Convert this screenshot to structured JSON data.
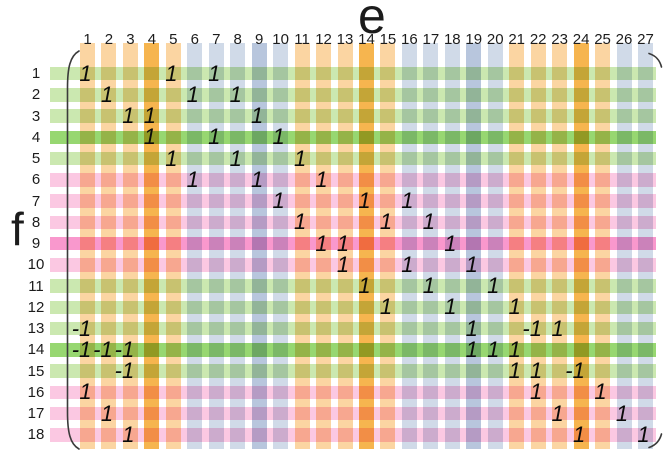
{
  "figure": {
    "top_axis_label": "e",
    "left_axis_label": "f"
  },
  "palette": {
    "column_orange": "#FBD5A2",
    "column_orange_dark": "#F6B54F",
    "column_blue": "#D0DAE8",
    "column_blue_dark": "#B8C6DD",
    "row_green": "#CBE8B0",
    "row_green_dark": "#97D771",
    "row_pink": "#FBC8E2",
    "row_pink_dark": "#F998CD",
    "entry_text": "#0a0a0a",
    "paren_stroke": "#3b3b3b",
    "label_text": "#1c1c1c"
  },
  "columns": [
    {
      "label": "1",
      "color": "#FBD5A2"
    },
    {
      "label": "2",
      "color": "#FBD5A2"
    },
    {
      "label": "3",
      "color": "#FBD5A2"
    },
    {
      "label": "4",
      "color": "#F6B54F"
    },
    {
      "label": "5",
      "color": "#FBD5A2"
    },
    {
      "label": "6",
      "color": "#D0DAE8"
    },
    {
      "label": "7",
      "color": "#D0DAE8"
    },
    {
      "label": "8",
      "color": "#D0DAE8"
    },
    {
      "label": "9",
      "color": "#B8C6DD"
    },
    {
      "label": "10",
      "color": "#D0DAE8"
    },
    {
      "label": "11",
      "color": "#FBD5A2"
    },
    {
      "label": "12",
      "color": "#FBD5A2"
    },
    {
      "label": "13",
      "color": "#FBD5A2"
    },
    {
      "label": "14",
      "color": "#F6B54F"
    },
    {
      "label": "15",
      "color": "#FBD5A2"
    },
    {
      "label": "16",
      "color": "#D0DAE8"
    },
    {
      "label": "17",
      "color": "#D0DAE8"
    },
    {
      "label": "18",
      "color": "#D0DAE8"
    },
    {
      "label": "19",
      "color": "#B8C6DD"
    },
    {
      "label": "20",
      "color": "#D0DAE8"
    },
    {
      "label": "21",
      "color": "#FBD5A2"
    },
    {
      "label": "22",
      "color": "#FBD5A2"
    },
    {
      "label": "23",
      "color": "#FBD5A2"
    },
    {
      "label": "24",
      "color": "#F6B54F"
    },
    {
      "label": "25",
      "color": "#FBD5A2"
    },
    {
      "label": "26",
      "color": "#D0DAE8"
    },
    {
      "label": "27",
      "color": "#D0DAE8"
    }
  ],
  "rows": [
    {
      "label": "1",
      "color": "#CBE8B0"
    },
    {
      "label": "2",
      "color": "#CBE8B0"
    },
    {
      "label": "3",
      "color": "#CBE8B0"
    },
    {
      "label": "4",
      "color": "#97D771"
    },
    {
      "label": "5",
      "color": "#CBE8B0"
    },
    {
      "label": "6",
      "color": "#FBC8E2"
    },
    {
      "label": "7",
      "color": "#FBC8E2"
    },
    {
      "label": "8",
      "color": "#FBC8E2"
    },
    {
      "label": "9",
      "color": "#F998CD"
    },
    {
      "label": "10",
      "color": "#FBC8E2"
    },
    {
      "label": "11",
      "color": "#CBE8B0"
    },
    {
      "label": "12",
      "color": "#CBE8B0"
    },
    {
      "label": "13",
      "color": "#CBE8B0"
    },
    {
      "label": "14",
      "color": "#97D771"
    },
    {
      "label": "15",
      "color": "#CBE8B0"
    },
    {
      "label": "16",
      "color": "#FBC8E2"
    },
    {
      "label": "17",
      "color": "#FBC8E2"
    },
    {
      "label": "18",
      "color": "#FBC8E2"
    }
  ],
  "entries": [
    {
      "row": 1,
      "col": 1,
      "value": 1
    },
    {
      "row": 1,
      "col": 5,
      "value": 1
    },
    {
      "row": 1,
      "col": 7,
      "value": 1
    },
    {
      "row": 2,
      "col": 2,
      "value": 1
    },
    {
      "row": 2,
      "col": 6,
      "value": 1
    },
    {
      "row": 2,
      "col": 8,
      "value": 1
    },
    {
      "row": 3,
      "col": 3,
      "value": 1
    },
    {
      "row": 3,
      "col": 4,
      "value": 1
    },
    {
      "row": 3,
      "col": 9,
      "value": 1
    },
    {
      "row": 4,
      "col": 4,
      "value": 1
    },
    {
      "row": 4,
      "col": 7,
      "value": 1
    },
    {
      "row": 4,
      "col": 10,
      "value": 1
    },
    {
      "row": 5,
      "col": 5,
      "value": 1
    },
    {
      "row": 5,
      "col": 8,
      "value": 1
    },
    {
      "row": 5,
      "col": 11,
      "value": 1
    },
    {
      "row": 6,
      "col": 6,
      "value": 1
    },
    {
      "row": 6,
      "col": 9,
      "value": 1
    },
    {
      "row": 6,
      "col": 12,
      "value": 1
    },
    {
      "row": 7,
      "col": 10,
      "value": 1
    },
    {
      "row": 7,
      "col": 14,
      "value": 1
    },
    {
      "row": 7,
      "col": 16,
      "value": 1
    },
    {
      "row": 8,
      "col": 11,
      "value": 1
    },
    {
      "row": 8,
      "col": 15,
      "value": 1
    },
    {
      "row": 8,
      "col": 17,
      "value": 1
    },
    {
      "row": 9,
      "col": 12,
      "value": 1
    },
    {
      "row": 9,
      "col": 13,
      "value": 1
    },
    {
      "row": 9,
      "col": 18,
      "value": 1
    },
    {
      "row": 10,
      "col": 13,
      "value": 1
    },
    {
      "row": 10,
      "col": 16,
      "value": 1
    },
    {
      "row": 10,
      "col": 19,
      "value": 1
    },
    {
      "row": 11,
      "col": 14,
      "value": 1
    },
    {
      "row": 11,
      "col": 17,
      "value": 1
    },
    {
      "row": 11,
      "col": 20,
      "value": 1
    },
    {
      "row": 12,
      "col": 15,
      "value": 1
    },
    {
      "row": 12,
      "col": 18,
      "value": 1
    },
    {
      "row": 12,
      "col": 21,
      "value": 1
    },
    {
      "row": 13,
      "col": 1,
      "value": -1
    },
    {
      "row": 13,
      "col": 19,
      "value": 1
    },
    {
      "row": 13,
      "col": 22,
      "value": -1
    },
    {
      "row": 13,
      "col": 23,
      "value": 1
    },
    {
      "row": 14,
      "col": 1,
      "value": -1
    },
    {
      "row": 14,
      "col": 2,
      "value": -1
    },
    {
      "row": 14,
      "col": 3,
      "value": -1
    },
    {
      "row": 14,
      "col": 19,
      "value": 1
    },
    {
      "row": 14,
      "col": 20,
      "value": 1
    },
    {
      "row": 14,
      "col": 21,
      "value": 1
    },
    {
      "row": 15,
      "col": 3,
      "value": -1
    },
    {
      "row": 15,
      "col": 21,
      "value": 1
    },
    {
      "row": 15,
      "col": 22,
      "value": 1
    },
    {
      "row": 15,
      "col": 24,
      "value": -1
    },
    {
      "row": 16,
      "col": 1,
      "value": 1
    },
    {
      "row": 16,
      "col": 22,
      "value": 1
    },
    {
      "row": 16,
      "col": 25,
      "value": 1
    },
    {
      "row": 17,
      "col": 2,
      "value": 1
    },
    {
      "row": 17,
      "col": 23,
      "value": 1
    },
    {
      "row": 17,
      "col": 26,
      "value": 1
    },
    {
      "row": 18,
      "col": 3,
      "value": 1
    },
    {
      "row": 18,
      "col": 24,
      "value": 1
    },
    {
      "row": 18,
      "col": 27,
      "value": 1
    }
  ]
}
